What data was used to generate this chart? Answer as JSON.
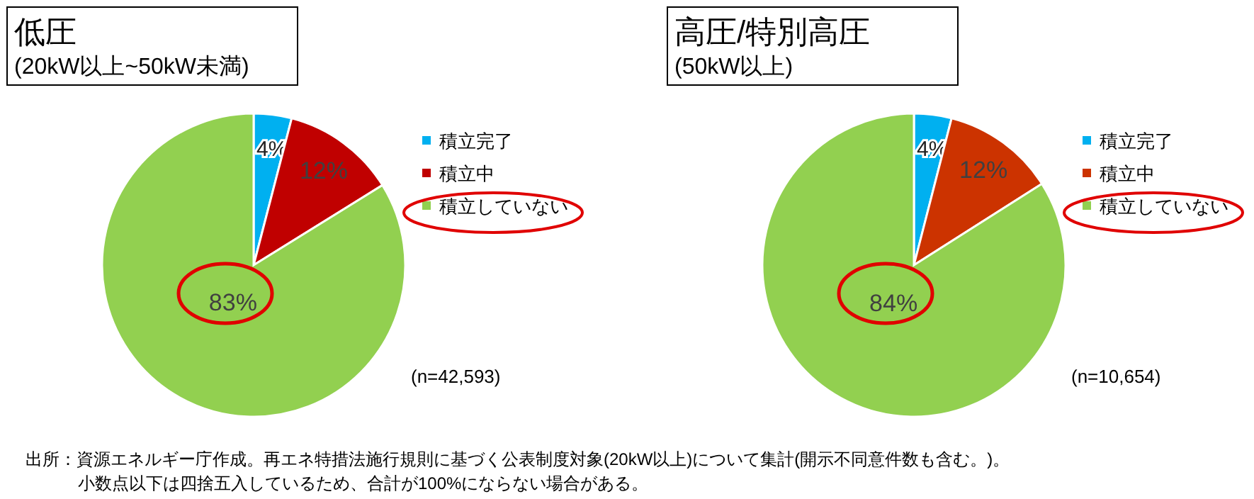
{
  "chart_data": [
    {
      "type": "pie",
      "title": "低圧",
      "subtitle": "(20kW以上~50kW未満)",
      "categories": [
        "積立完了",
        "積立中",
        "積立していない"
      ],
      "values": [
        4,
        12,
        83
      ],
      "value_labels": [
        "4%",
        "12%",
        "83%"
      ],
      "colors": [
        "#00b0f0",
        "#c00000",
        "#92d050"
      ],
      "data_labels": true,
      "legend": "right",
      "annotations": [
        "(n=42,593)",
        "出所：資源エネルギー庁作成。再エネ特措法施行規則に基づく公表制度対象(20kW以上)について集計(開示不同意件数も含む。)。",
        "小数点以下は四捨五入しているため、合計が100%にならない場合がある。"
      ]
    },
    {
      "type": "pie",
      "title": "高圧/特別高圧",
      "subtitle": "(50kW以上)",
      "categories": [
        "積立完了",
        "積立中",
        "積立していない"
      ],
      "values": [
        4,
        12,
        84
      ],
      "value_labels": [
        "4%",
        "12%",
        "84%"
      ],
      "colors": [
        "#00b0f0",
        "#cc3300",
        "#92d050"
      ],
      "data_labels": true,
      "legend": "right",
      "annotations": [
        "(n=10,654)"
      ]
    }
  ]
}
